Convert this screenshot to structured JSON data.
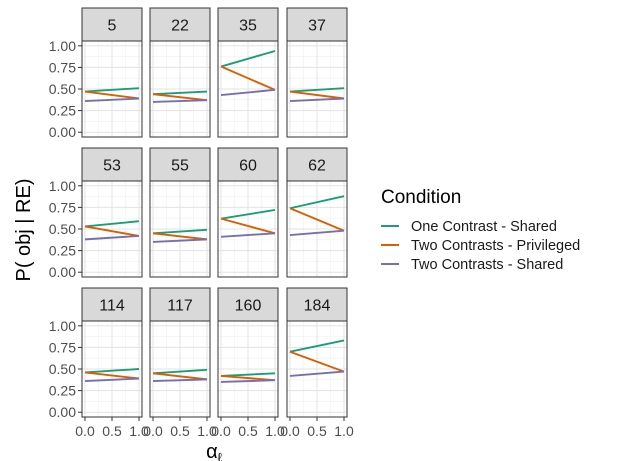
{
  "chart_data": {
    "type": "line",
    "facet": "wrap",
    "ylabel": "P( obj | RE)",
    "xlabel": "α",
    "xlabel_subscript": "ℓ",
    "x_ticks": [
      "0.0",
      "0.5",
      "1.0"
    ],
    "y_ticks": [
      "0.00",
      "0.25",
      "0.50",
      "0.75",
      "1.00"
    ],
    "xlim": [
      0,
      1
    ],
    "ylim": [
      0,
      1
    ],
    "grid": true,
    "legend": {
      "title": "Condition",
      "position": "right",
      "items": [
        {
          "name": "One Contrast - Shared",
          "color": "#1b9e77"
        },
        {
          "name": "Two Contrasts - Privileged",
          "color": "#d95f02"
        },
        {
          "name": "Two Contrasts - Shared",
          "color": "#7570b3"
        }
      ]
    },
    "panels": [
      {
        "label": "5",
        "series": [
          {
            "name": "One Contrast - Shared",
            "x": [
              0,
              1
            ],
            "y": [
              0.47,
              0.51
            ]
          },
          {
            "name": "Two Contrasts - Privileged",
            "x": [
              0,
              1
            ],
            "y": [
              0.47,
              0.39
            ]
          },
          {
            "name": "Two Contrasts - Shared",
            "x": [
              0,
              1
            ],
            "y": [
              0.36,
              0.39
            ]
          }
        ]
      },
      {
        "label": "22",
        "series": [
          {
            "name": "One Contrast - Shared",
            "x": [
              0,
              1
            ],
            "y": [
              0.44,
              0.47
            ]
          },
          {
            "name": "Two Contrasts - Privileged",
            "x": [
              0,
              1
            ],
            "y": [
              0.44,
              0.37
            ]
          },
          {
            "name": "Two Contrasts - Shared",
            "x": [
              0,
              1
            ],
            "y": [
              0.35,
              0.37
            ]
          }
        ]
      },
      {
        "label": "35",
        "series": [
          {
            "name": "One Contrast - Shared",
            "x": [
              0,
              1
            ],
            "y": [
              0.76,
              0.94
            ]
          },
          {
            "name": "Two Contrasts - Privileged",
            "x": [
              0,
              1
            ],
            "y": [
              0.76,
              0.49
            ]
          },
          {
            "name": "Two Contrasts - Shared",
            "x": [
              0,
              1
            ],
            "y": [
              0.43,
              0.49
            ]
          }
        ]
      },
      {
        "label": "37",
        "series": [
          {
            "name": "One Contrast - Shared",
            "x": [
              0,
              1
            ],
            "y": [
              0.47,
              0.51
            ]
          },
          {
            "name": "Two Contrasts - Privileged",
            "x": [
              0,
              1
            ],
            "y": [
              0.47,
              0.39
            ]
          },
          {
            "name": "Two Contrasts - Shared",
            "x": [
              0,
              1
            ],
            "y": [
              0.36,
              0.39
            ]
          }
        ]
      },
      {
        "label": "53",
        "series": [
          {
            "name": "One Contrast - Shared",
            "x": [
              0,
              1
            ],
            "y": [
              0.53,
              0.59
            ]
          },
          {
            "name": "Two Contrasts - Privileged",
            "x": [
              0,
              1
            ],
            "y": [
              0.53,
              0.42
            ]
          },
          {
            "name": "Two Contrasts - Shared",
            "x": [
              0,
              1
            ],
            "y": [
              0.38,
              0.42
            ]
          }
        ]
      },
      {
        "label": "55",
        "series": [
          {
            "name": "One Contrast - Shared",
            "x": [
              0,
              1
            ],
            "y": [
              0.45,
              0.49
            ]
          },
          {
            "name": "Two Contrasts - Privileged",
            "x": [
              0,
              1
            ],
            "y": [
              0.45,
              0.38
            ]
          },
          {
            "name": "Two Contrasts - Shared",
            "x": [
              0,
              1
            ],
            "y": [
              0.35,
              0.38
            ]
          }
        ]
      },
      {
        "label": "60",
        "series": [
          {
            "name": "One Contrast - Shared",
            "x": [
              0,
              1
            ],
            "y": [
              0.62,
              0.72
            ]
          },
          {
            "name": "Two Contrasts - Privileged",
            "x": [
              0,
              1
            ],
            "y": [
              0.62,
              0.45
            ]
          },
          {
            "name": "Two Contrasts - Shared",
            "x": [
              0,
              1
            ],
            "y": [
              0.41,
              0.45
            ]
          }
        ]
      },
      {
        "label": "62",
        "series": [
          {
            "name": "One Contrast - Shared",
            "x": [
              0,
              1
            ],
            "y": [
              0.74,
              0.88
            ]
          },
          {
            "name": "Two Contrasts - Privileged",
            "x": [
              0,
              1
            ],
            "y": [
              0.74,
              0.48
            ]
          },
          {
            "name": "Two Contrasts - Shared",
            "x": [
              0,
              1
            ],
            "y": [
              0.43,
              0.48
            ]
          }
        ]
      },
      {
        "label": "114",
        "series": [
          {
            "name": "One Contrast - Shared",
            "x": [
              0,
              1
            ],
            "y": [
              0.46,
              0.5
            ]
          },
          {
            "name": "Two Contrasts - Privileged",
            "x": [
              0,
              1
            ],
            "y": [
              0.46,
              0.39
            ]
          },
          {
            "name": "Two Contrasts - Shared",
            "x": [
              0,
              1
            ],
            "y": [
              0.36,
              0.39
            ]
          }
        ]
      },
      {
        "label": "117",
        "series": [
          {
            "name": "One Contrast - Shared",
            "x": [
              0,
              1
            ],
            "y": [
              0.45,
              0.49
            ]
          },
          {
            "name": "Two Contrasts - Privileged",
            "x": [
              0,
              1
            ],
            "y": [
              0.45,
              0.38
            ]
          },
          {
            "name": "Two Contrasts - Shared",
            "x": [
              0,
              1
            ],
            "y": [
              0.36,
              0.38
            ]
          }
        ]
      },
      {
        "label": "160",
        "series": [
          {
            "name": "One Contrast - Shared",
            "x": [
              0,
              1
            ],
            "y": [
              0.42,
              0.45
            ]
          },
          {
            "name": "Two Contrasts - Privileged",
            "x": [
              0,
              1
            ],
            "y": [
              0.42,
              0.37
            ]
          },
          {
            "name": "Two Contrasts - Shared",
            "x": [
              0,
              1
            ],
            "y": [
              0.35,
              0.37
            ]
          }
        ]
      },
      {
        "label": "184",
        "series": [
          {
            "name": "One Contrast - Shared",
            "x": [
              0,
              1
            ],
            "y": [
              0.7,
              0.83
            ]
          },
          {
            "name": "Two Contrasts - Privileged",
            "x": [
              0,
              1
            ],
            "y": [
              0.7,
              0.47
            ]
          },
          {
            "name": "Two Contrasts - Shared",
            "x": [
              0,
              1
            ],
            "y": [
              0.42,
              0.47
            ]
          }
        ]
      }
    ]
  }
}
